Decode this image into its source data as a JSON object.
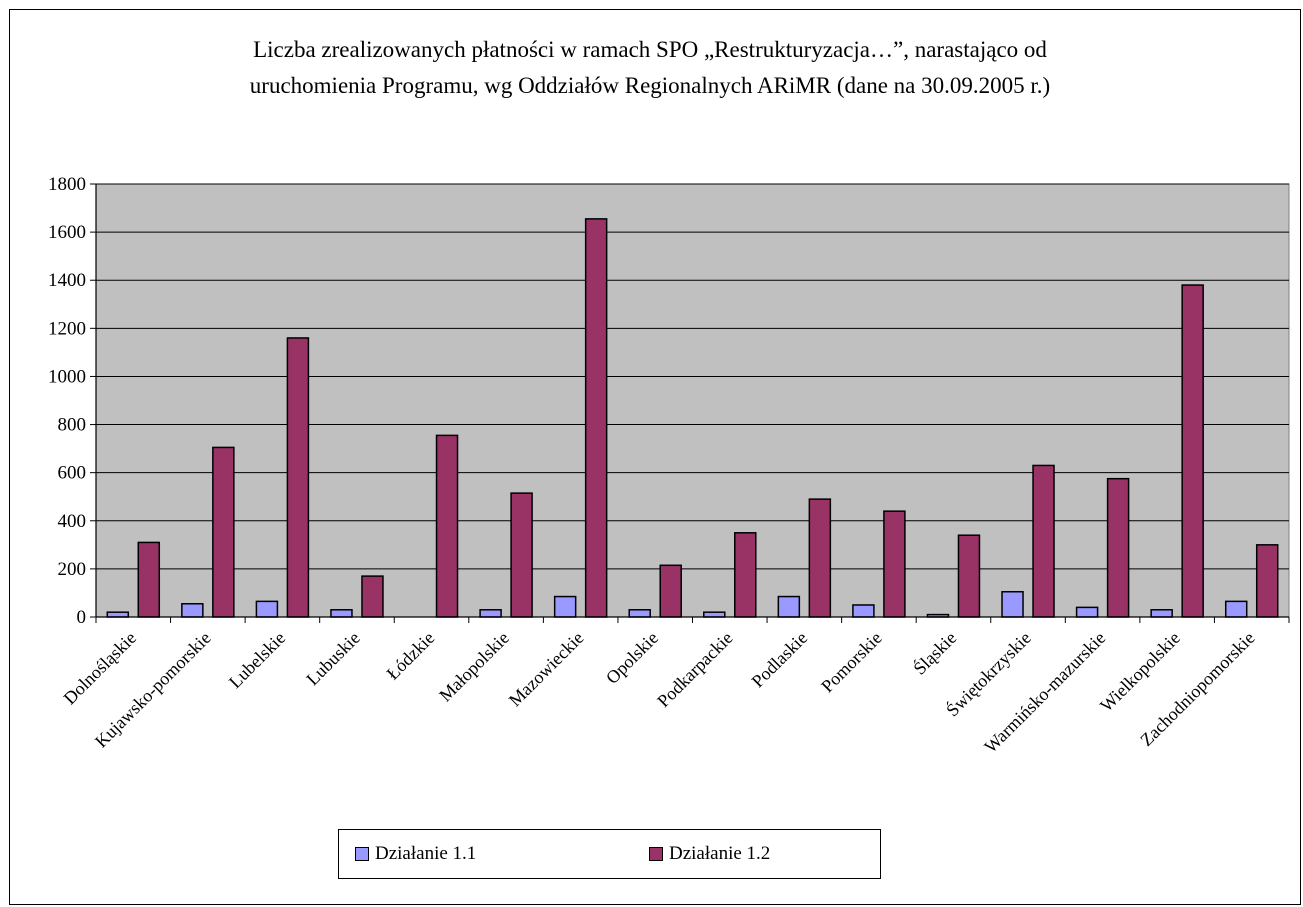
{
  "chart_data": {
    "type": "bar",
    "title": "Liczba zrealizowanych płatności w ramach SPO „Restrukturyzacja…”, narastająco od uruchomienia Programu, wg Oddziałów Regionalnych ARiMR (dane na 30.09.2005 r.)",
    "title_lines": [
      "Liczba zrealizowanych płatności w ramach SPO „Restrukturyzacja…”, narastająco od",
      "uruchomienia Programu, wg Oddziałów Regionalnych ARiMR (dane na 30.09.2005 r.)"
    ],
    "categories": [
      "Dolnośląskie",
      "Kujawsko-pomorskie",
      "Lubelskie",
      "Lubuskie",
      "Łódzkie",
      "Małopolskie",
      "Mazowieckie",
      "Opolskie",
      "Podkarpackie",
      "Podlaskie",
      "Pomorskie",
      "Śląskie",
      "Świętokrzyskie",
      "Warmińsko-mazurskie",
      "Wielkopolskie",
      "Zachodniopomorskie"
    ],
    "series": [
      {
        "name": "Działanie 1.1",
        "color": "#9999ff",
        "values": [
          20,
          55,
          65,
          30,
          0,
          30,
          85,
          30,
          20,
          85,
          50,
          10,
          105,
          40,
          30,
          65
        ]
      },
      {
        "name": "Działanie 1.2",
        "color": "#993366",
        "values": [
          310,
          705,
          1160,
          170,
          755,
          515,
          1655,
          215,
          350,
          490,
          440,
          340,
          630,
          575,
          1380,
          300
        ]
      }
    ],
    "ylim": [
      0,
      1800
    ],
    "yticks": [
      0,
      200,
      400,
      600,
      800,
      1000,
      1200,
      1400,
      1600,
      1800
    ],
    "grid": true,
    "plot_background": "#c0c0c0",
    "legend_position": "bottom"
  }
}
